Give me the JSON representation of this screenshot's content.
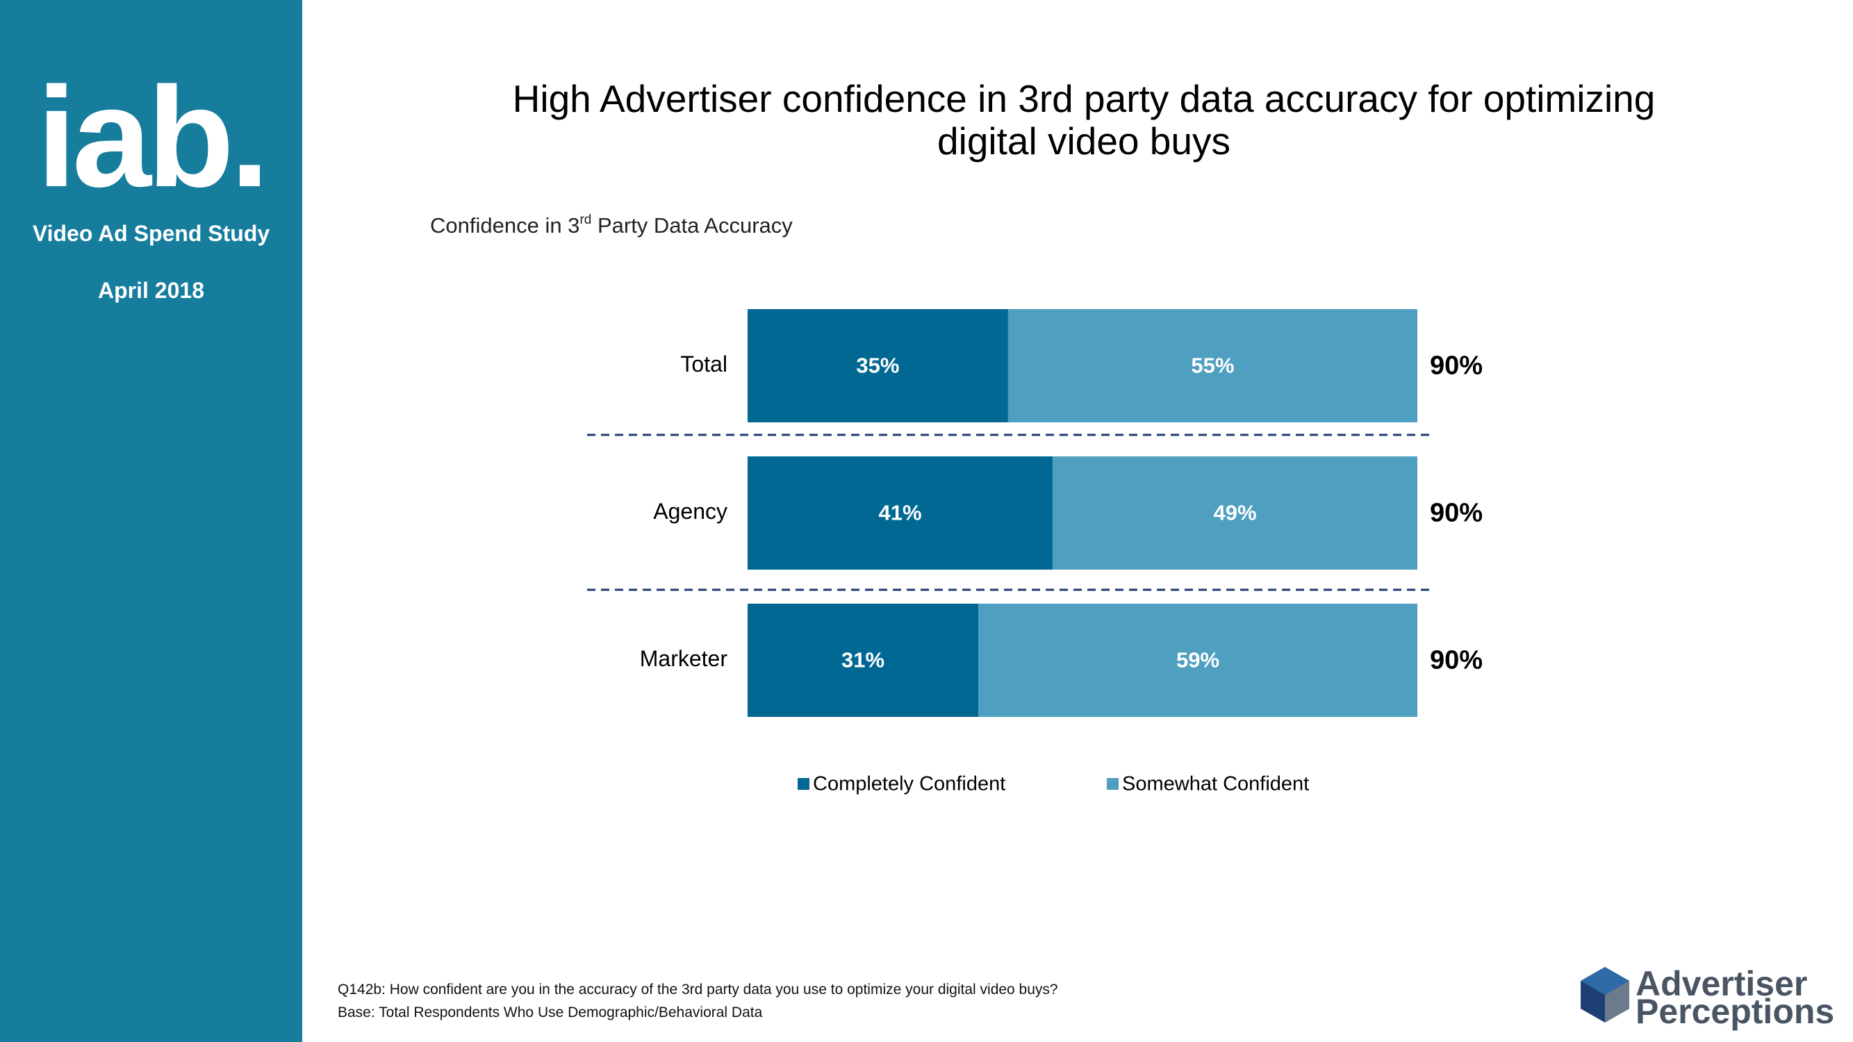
{
  "sidebar": {
    "logo": "iab.",
    "study": "Video Ad Spend Study",
    "date": "April 2018"
  },
  "chart_data": {
    "type": "bar",
    "orientation": "horizontal",
    "stacked": true,
    "title": "High Advertiser confidence in 3rd party data accuracy for optimizing digital video buys",
    "subtitle": [
      "Confidence in 3",
      "rd",
      " Party Data Accuracy"
    ],
    "categories": [
      "Total",
      "Agency",
      "Marketer"
    ],
    "series": [
      {
        "name": "Completely Confident",
        "color": "#006892",
        "values": [
          35,
          41,
          31
        ],
        "value_labels": [
          "35%",
          "41%",
          "31%"
        ]
      },
      {
        "name": "Somewhat Confident",
        "color": "#4f9fc1",
        "values": [
          55,
          49,
          59
        ],
        "value_labels": [
          "55%",
          "49%",
          "59%"
        ]
      }
    ],
    "totals": {
      "values": [
        90,
        90,
        90
      ],
      "value_labels": [
        "90%",
        "90%",
        "90%"
      ]
    },
    "legend": "bottom"
  },
  "footer": {
    "question": "Q142b: How confident are you in the accuracy of the 3rd party data you use to optimize your digital video buys?",
    "base": "Base: Total Respondents Who Use Demographic/Behavioral Data",
    "brand": [
      "Advertiser",
      "Perceptions"
    ]
  }
}
